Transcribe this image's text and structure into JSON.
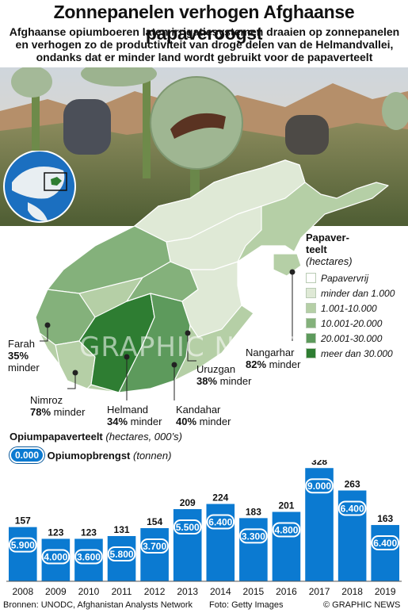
{
  "header": {
    "title": "Zonnepanelen  verhogen Afghaanse papaveroogst",
    "subtitle": "Afghaanse opiumboeren laten irrigatiesystemen draaien op zonnepanelen en verhogen zo de productiviteit van droge delen van de Helmandvallei, ondanks dat er minder land wordt gebruikt voor de papaverteelt"
  },
  "legend": {
    "title_line1": "Papaver-",
    "title_line2": "teelt",
    "unit": "(hectares)",
    "items": [
      {
        "label": "Papavervrij",
        "color": "#ffffff"
      },
      {
        "label": "minder dan 1.000",
        "color": "#dfe9d6"
      },
      {
        "label": "1.001-10.000",
        "color": "#b5cfa6"
      },
      {
        "label": "10.001-20.000",
        "color": "#84b17b"
      },
      {
        "label": "20.001-30.000",
        "color": "#5d9a5c"
      },
      {
        "label": "meer dan 30.000",
        "color": "#2e7d32"
      }
    ]
  },
  "provinces": [
    {
      "name": "Farah",
      "pct": "35%",
      "suffix": "minder"
    },
    {
      "name": "Nimroz",
      "pct": "78%",
      "suffix": "minder"
    },
    {
      "name": "Helmand",
      "pct": "34%",
      "suffix": "minder"
    },
    {
      "name": "Kandahar",
      "pct": "40%",
      "suffix": "minder"
    },
    {
      "name": "Uruzgan",
      "pct": "38%",
      "suffix": "minder"
    },
    {
      "name": "Nangarhar",
      "pct": "82%",
      "suffix": "minder"
    }
  ],
  "watermark": "GRAPHIC NEWS",
  "chart_labels": {
    "series1_title": "Opiumpapaverteelt",
    "series1_unit": "(hectares, 000’s)",
    "pill_sample": "0.000",
    "series2_title": "Opiumopbrengst",
    "series2_unit": "(tonnen)"
  },
  "chart_data": {
    "type": "bar",
    "categories": [
      "2008",
      "2009",
      "2010",
      "2011",
      "2012",
      "2013",
      "2014",
      "2015",
      "2016",
      "2017",
      "2018",
      "2019"
    ],
    "series": [
      {
        "name": "Opiumpapaverteelt",
        "values": [
          157,
          123,
          123,
          131,
          154,
          209,
          224,
          183,
          201,
          328,
          263,
          163
        ]
      },
      {
        "name": "Opiumopbrengst",
        "values": [
          5900,
          4000,
          3600,
          5800,
          3700,
          5500,
          6400,
          3300,
          4800,
          9000,
          6400,
          6400
        ]
      }
    ],
    "value_labels": [
      "157",
      "123",
      "123",
      "131",
      "154",
      "209",
      "224",
      "183",
      "201",
      "328",
      "263",
      "163"
    ],
    "yield_labels": [
      "5.900",
      "4.000",
      "3.600",
      "5.800",
      "3.700",
      "5.500",
      "6.400",
      "3.300",
      "4.800",
      "9.000",
      "6.400",
      "6.400"
    ],
    "ylim": [
      0,
      340
    ],
    "bar_color": "#0b7ad1",
    "pill_color": "#0b7ad1"
  },
  "footer": {
    "sources": "Bronnen: UNODC, Afghanistan Analysts Network",
    "photo_credit": "Foto: Getty Images",
    "copyright": "© GRAPHIC NEWS"
  }
}
